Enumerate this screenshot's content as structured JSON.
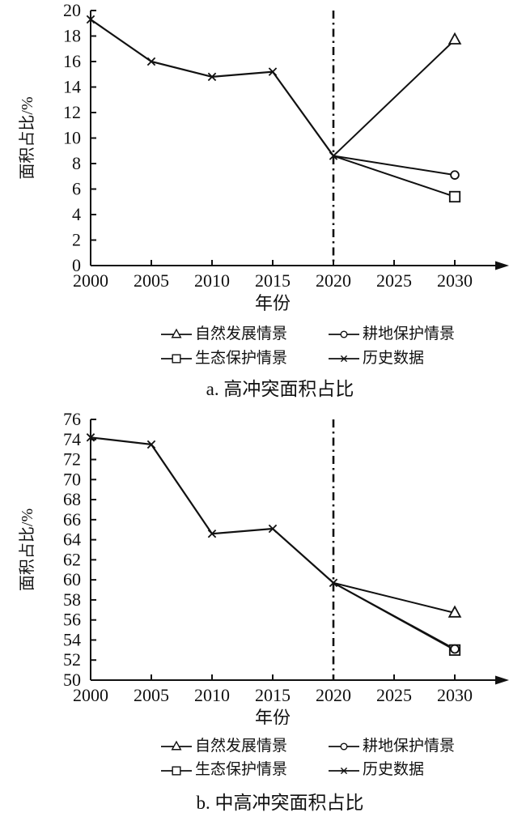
{
  "page": {
    "background": "#ffffff",
    "ink": "#111111"
  },
  "chart_data": [
    {
      "id": "a",
      "type": "line",
      "caption": "a. 高冲突面积占比",
      "xlabel": "年份",
      "ylabel": "面积占比/%",
      "xlim": [
        2000,
        2030
      ],
      "ylim": [
        0,
        20
      ],
      "ytick_step": 2,
      "xticks": [
        2000,
        2005,
        2010,
        2015,
        2020,
        2025,
        2030
      ],
      "yticks": [
        0,
        2,
        4,
        6,
        8,
        10,
        12,
        14,
        16,
        18,
        20
      ],
      "vline_x": 2020,
      "grid": false,
      "legend_position": "bottom",
      "series": [
        {
          "name": "历史数据",
          "marker": "x",
          "markers_at": "all",
          "x": [
            2000,
            2005,
            2010,
            2015,
            2020
          ],
          "y": [
            19.3,
            16.0,
            14.8,
            15.2,
            8.6
          ]
        },
        {
          "name": "自然发展情景",
          "marker": "triangle",
          "markers_at": "last",
          "x": [
            2020,
            2030
          ],
          "y": [
            8.6,
            17.7
          ]
        },
        {
          "name": "生态保护情景",
          "marker": "square",
          "markers_at": "last",
          "x": [
            2020,
            2030
          ],
          "y": [
            8.6,
            5.4
          ]
        },
        {
          "name": "耕地保护情景",
          "marker": "circle",
          "markers_at": "last",
          "x": [
            2020,
            2030
          ],
          "y": [
            8.6,
            7.1
          ]
        }
      ],
      "legend": [
        {
          "label": "自然发展情景",
          "marker": "triangle"
        },
        {
          "label": "耕地保护情景",
          "marker": "circle"
        },
        {
          "label": "生态保护情景",
          "marker": "square"
        },
        {
          "label": "历史数据",
          "marker": "x"
        }
      ]
    },
    {
      "id": "b",
      "type": "line",
      "caption": "b. 中高冲突面积占比",
      "xlabel": "年份",
      "ylabel": "面积占比/%",
      "xlim": [
        2000,
        2030
      ],
      "ylim": [
        50,
        76
      ],
      "ytick_step": 2,
      "xticks": [
        2000,
        2005,
        2010,
        2015,
        2020,
        2025,
        2030
      ],
      "yticks": [
        50,
        52,
        54,
        56,
        58,
        60,
        62,
        64,
        66,
        68,
        70,
        72,
        74,
        76
      ],
      "vline_x": 2020,
      "grid": false,
      "legend_position": "bottom",
      "series": [
        {
          "name": "历史数据",
          "marker": "x",
          "markers_at": "all",
          "x": [
            2000,
            2005,
            2010,
            2015,
            2020
          ],
          "y": [
            74.2,
            73.5,
            64.6,
            65.1,
            59.7
          ]
        },
        {
          "name": "自然发展情景",
          "marker": "triangle",
          "markers_at": "last",
          "x": [
            2020,
            2030
          ],
          "y": [
            59.7,
            56.7
          ]
        },
        {
          "name": "生态保护情景",
          "marker": "square",
          "markers_at": "last",
          "x": [
            2020,
            2030
          ],
          "y": [
            59.7,
            53.0
          ]
        },
        {
          "name": "耕地保护情景",
          "marker": "circle",
          "markers_at": "last",
          "x": [
            2020,
            2030
          ],
          "y": [
            59.7,
            53.1
          ]
        }
      ],
      "legend": [
        {
          "label": "自然发展情景",
          "marker": "triangle"
        },
        {
          "label": "耕地保护情景",
          "marker": "circle"
        },
        {
          "label": "生态保护情景",
          "marker": "square"
        },
        {
          "label": "历史数据",
          "marker": "x"
        }
      ]
    }
  ]
}
